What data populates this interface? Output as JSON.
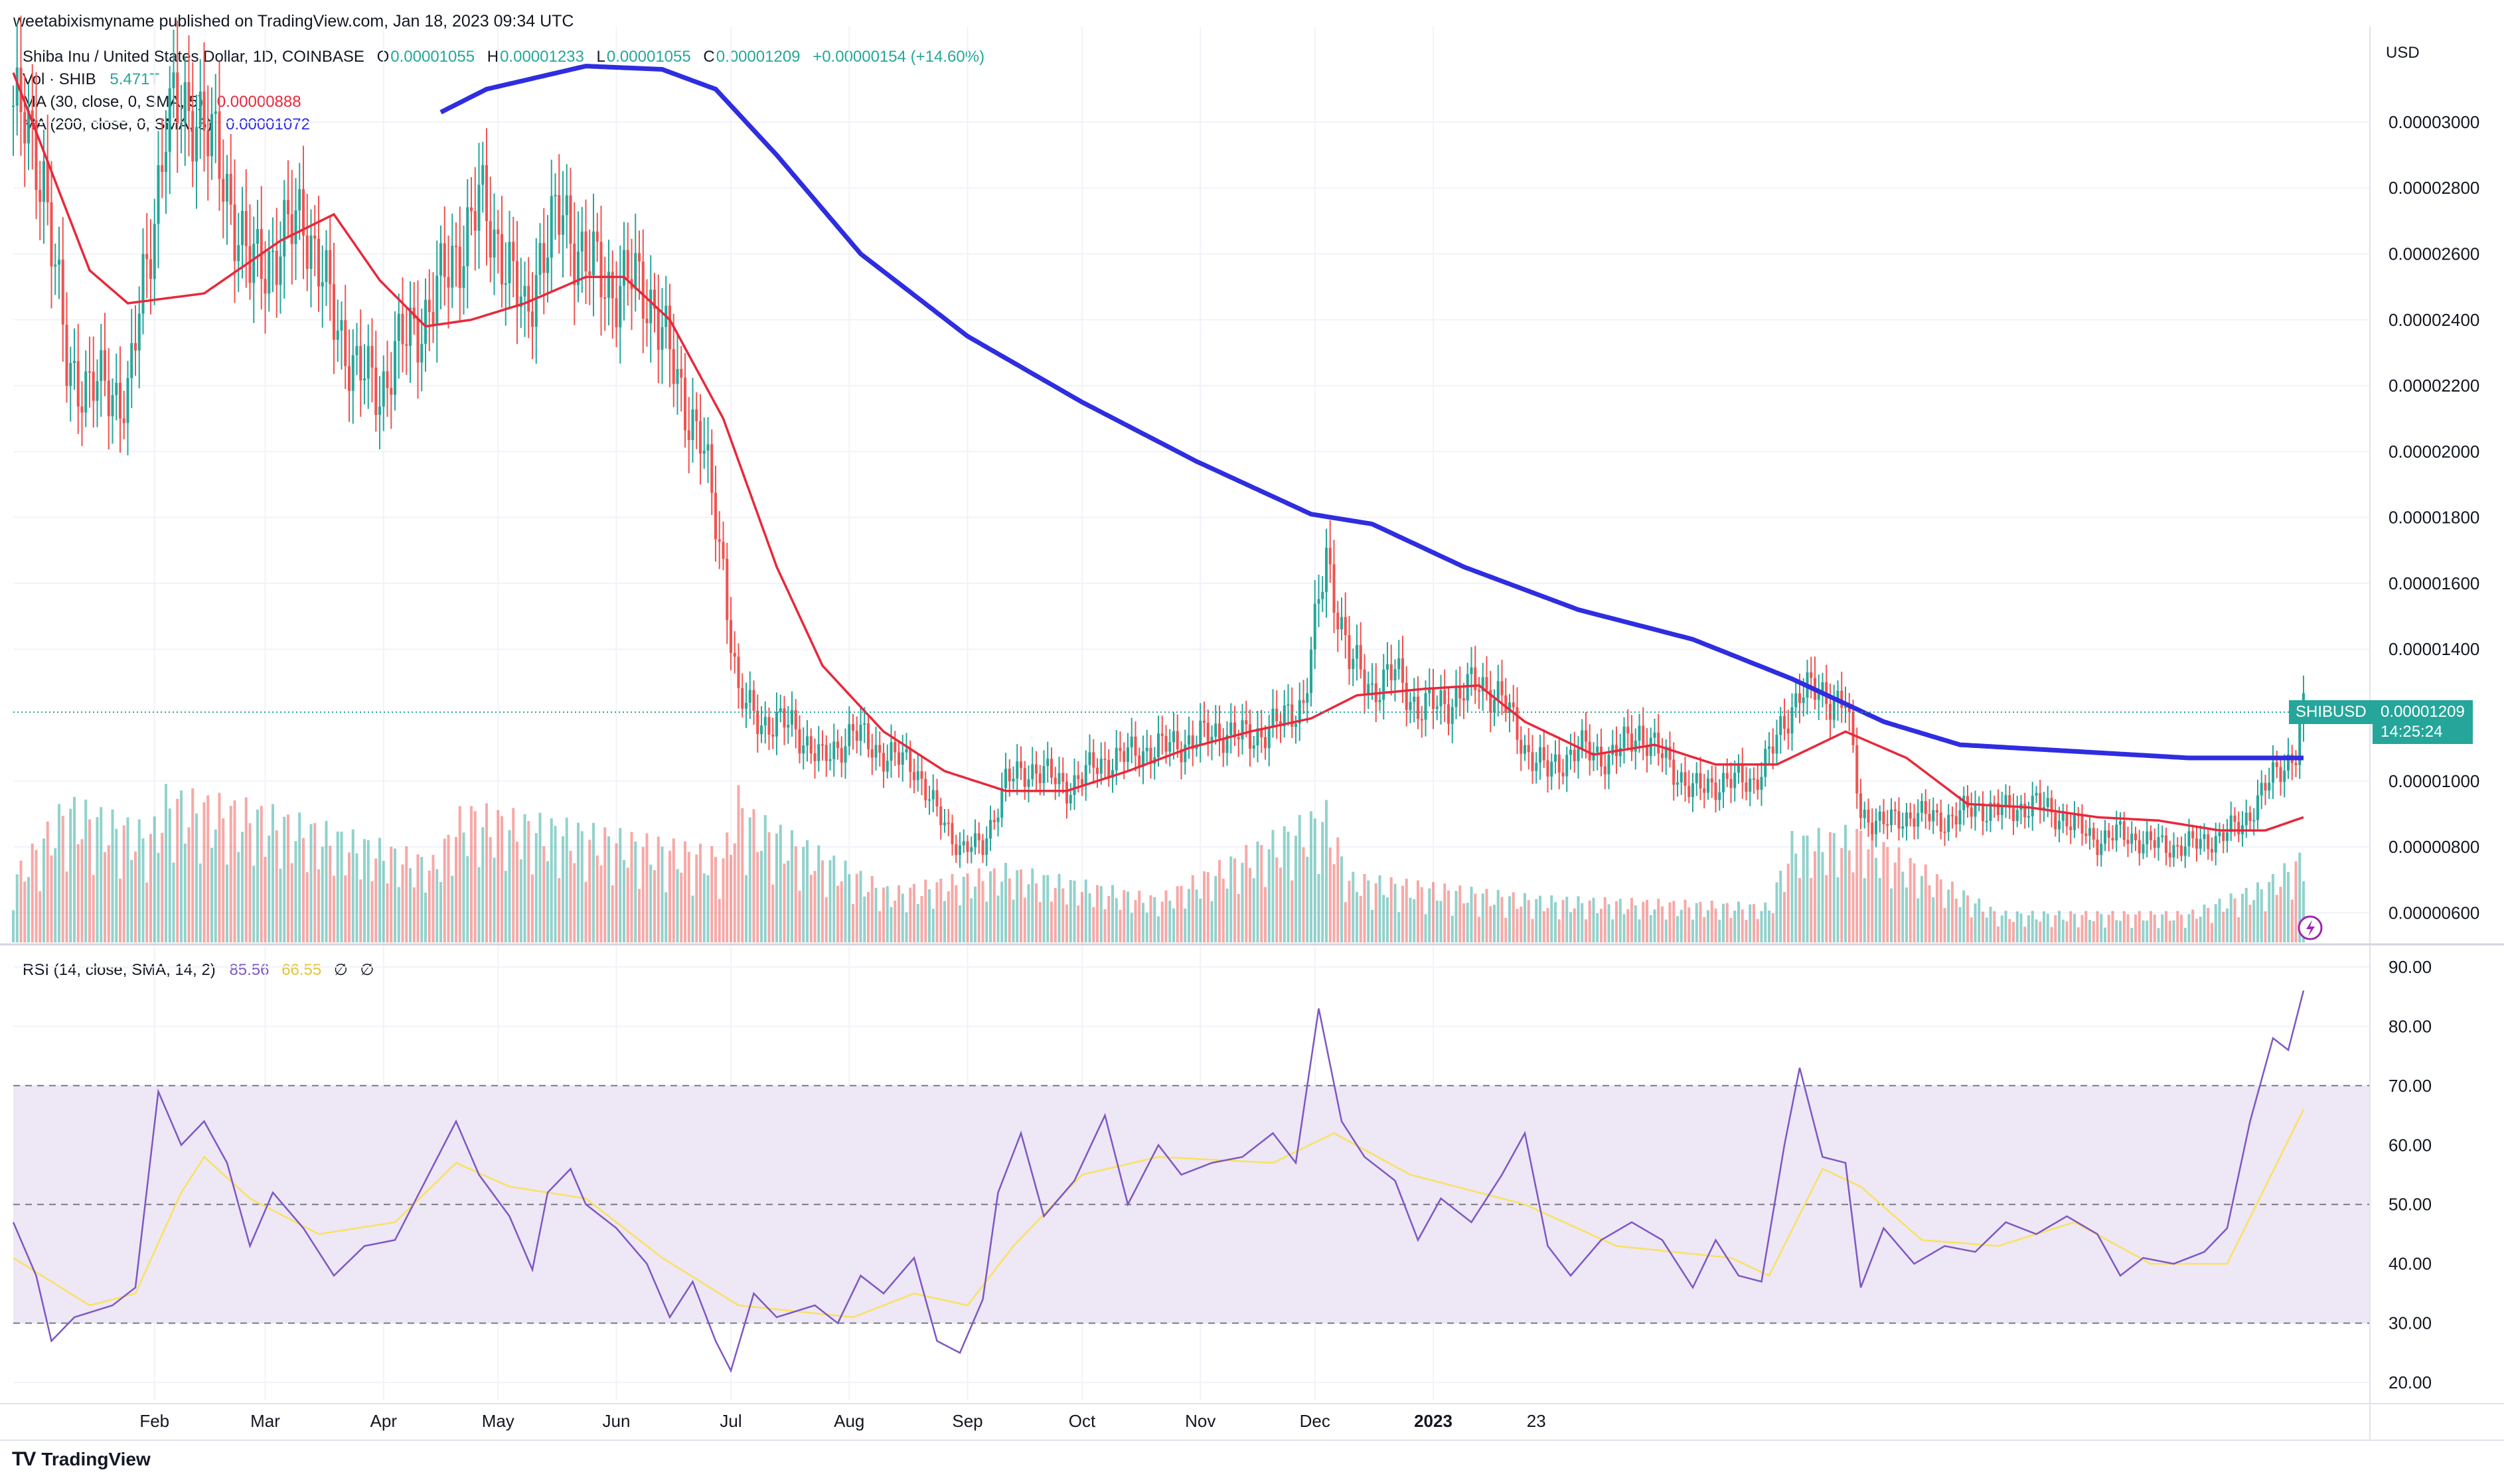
{
  "publish_line": "weetabixismyname published on TradingView.com, Jan 18, 2023 09:34 UTC",
  "legend": {
    "symbol": "Shiba Inu / United States Dollar, 1D, COINBASE",
    "o_label": "O",
    "o_value": "0.00001055",
    "h_label": "H",
    "h_value": "0.00001233",
    "l_label": "L",
    "l_value": "0.00001055",
    "c_label": "C",
    "c_value": "0.00001209",
    "change": "+0.00000154 (+14.60%)",
    "vol_label": "Vol · SHIB",
    "vol_value": "5.471T",
    "ma30_label": "MA (30, close, 0, SMA, 5)",
    "ma30_value": "0.00000888",
    "ma200_label": "MA (200, close, 0, SMA, 5)",
    "ma200_value": "0.00001072",
    "rsi_label": "RSI (14, close, SMA, 14, 2)",
    "rsi_value": "85.56",
    "rsi_ma_value": "66.55",
    "rsi_extra1": "∅",
    "rsi_extra2": "∅"
  },
  "price_axis": {
    "currency": "USD",
    "ticks": [
      "0.00003000",
      "0.00002800",
      "0.00002600",
      "0.00002400",
      "0.00002200",
      "0.00002000",
      "0.00001800",
      "0.00001600",
      "0.00001400",
      "0.00001000",
      "0.00000800",
      "0.00000600"
    ]
  },
  "price_tag": {
    "symbol": "SHIBUSD",
    "value": "0.00001209",
    "countdown": "14:25:24"
  },
  "rsi_axis": {
    "ticks": [
      "90.00",
      "80.00",
      "70.00",
      "60.00",
      "50.00",
      "40.00",
      "30.00",
      "20.00"
    ]
  },
  "time_axis": {
    "labels": [
      "Feb",
      "Mar",
      "Apr",
      "May",
      "Jun",
      "Jul",
      "Aug",
      "Sep",
      "Oct",
      "Nov",
      "Dec",
      "2023",
      "23"
    ]
  },
  "brand": "TradingView",
  "colors": {
    "up": "#26a69a",
    "down": "#ef5350",
    "ma30": "#e8283b",
    "ma200": "#2f2de0",
    "rsi": "#7e57c2",
    "rsi_ma": "#fbe15f",
    "rsi_band": "#ede7f6"
  },
  "chart_data": {
    "type": "candlestick",
    "title": "Shiba Inu / United States Dollar, 1D, COINBASE",
    "xlabel": "",
    "ylabel": "USD",
    "ylim": [
      5.1e-06,
      3.29e-05
    ],
    "rsi_ylim": [
      17,
      93
    ],
    "rsi_levels": [
      30,
      50,
      70
    ],
    "months": [
      "Feb",
      "Mar",
      "Apr",
      "May",
      "Jun",
      "Jul",
      "Aug",
      "Sep",
      "Oct",
      "Nov",
      "Dec",
      "2023"
    ],
    "close_series": [
      {
        "t": 0,
        "v": 3.05e-05
      },
      {
        "t": 8,
        "v": 2.85e-05
      },
      {
        "t": 14,
        "v": 2.25e-05
      },
      {
        "t": 20,
        "v": 2.2e-05
      },
      {
        "t": 30,
        "v": 2.17e-05
      },
      {
        "t": 36,
        "v": 2.65e-05
      },
      {
        "t": 40,
        "v": 3e-05
      },
      {
        "t": 48,
        "v": 3.05e-05
      },
      {
        "t": 56,
        "v": 2.8e-05
      },
      {
        "t": 62,
        "v": 2.55e-05
      },
      {
        "t": 70,
        "v": 2.62e-05
      },
      {
        "t": 76,
        "v": 2.73e-05
      },
      {
        "t": 84,
        "v": 2.4e-05
      },
      {
        "t": 90,
        "v": 2.25e-05
      },
      {
        "t": 96,
        "v": 2.18e-05
      },
      {
        "t": 100,
        "v": 2.3e-05
      },
      {
        "t": 106,
        "v": 2.38e-05
      },
      {
        "t": 112,
        "v": 2.5e-05
      },
      {
        "t": 118,
        "v": 2.65e-05
      },
      {
        "t": 122,
        "v": 2.75e-05
      },
      {
        "t": 128,
        "v": 2.62e-05
      },
      {
        "t": 134,
        "v": 2.4e-05
      },
      {
        "t": 138,
        "v": 2.6e-05
      },
      {
        "t": 144,
        "v": 2.72e-05
      },
      {
        "t": 150,
        "v": 2.58e-05
      },
      {
        "t": 156,
        "v": 2.5e-05
      },
      {
        "t": 162,
        "v": 2.52e-05
      },
      {
        "t": 168,
        "v": 2.45e-05
      },
      {
        "t": 174,
        "v": 2.2e-05
      },
      {
        "t": 180,
        "v": 2.05e-05
      },
      {
        "t": 186,
        "v": 1.65e-05
      },
      {
        "t": 190,
        "v": 1.25e-05
      },
      {
        "t": 196,
        "v": 1.18e-05
      },
      {
        "t": 204,
        "v": 1.17e-05
      },
      {
        "t": 212,
        "v": 1.06e-05
      },
      {
        "t": 220,
        "v": 1.15e-05
      },
      {
        "t": 228,
        "v": 1.08e-05
      },
      {
        "t": 236,
        "v": 1.05e-05
      },
      {
        "t": 242,
        "v": 9e-06
      },
      {
        "t": 248,
        "v": 8e-06
      },
      {
        "t": 254,
        "v": 8e-06
      },
      {
        "t": 260,
        "v": 1e-05
      },
      {
        "t": 268,
        "v": 1.04e-05
      },
      {
        "t": 276,
        "v": 9.8e-06
      },
      {
        "t": 284,
        "v": 1.05e-05
      },
      {
        "t": 292,
        "v": 1.08e-05
      },
      {
        "t": 300,
        "v": 1.1e-05
      },
      {
        "t": 308,
        "v": 1.12e-05
      },
      {
        "t": 316,
        "v": 1.15e-05
      },
      {
        "t": 324,
        "v": 1.13e-05
      },
      {
        "t": 332,
        "v": 1.18e-05
      },
      {
        "t": 338,
        "v": 1.24e-05
      },
      {
        "t": 344,
        "v": 1.68e-05
      },
      {
        "t": 350,
        "v": 1.37e-05
      },
      {
        "t": 356,
        "v": 1.28e-05
      },
      {
        "t": 362,
        "v": 1.33e-05
      },
      {
        "t": 368,
        "v": 1.22e-05
      },
      {
        "t": 376,
        "v": 1.24e-05
      },
      {
        "t": 384,
        "v": 1.3e-05
      },
      {
        "t": 390,
        "v": 1.25e-05
      },
      {
        "t": 396,
        "v": 1.1e-05
      },
      {
        "t": 402,
        "v": 1.03e-05
      },
      {
        "t": 410,
        "v": 1.1e-05
      },
      {
        "t": 418,
        "v": 1.07e-05
      },
      {
        "t": 426,
        "v": 1.15e-05
      },
      {
        "t": 434,
        "v": 1.05e-05
      },
      {
        "t": 440,
        "v": 9.7e-06
      },
      {
        "t": 448,
        "v": 1e-05
      },
      {
        "t": 456,
        "v": 1e-05
      },
      {
        "t": 462,
        "v": 1.12e-05
      },
      {
        "t": 468,
        "v": 1.28e-05
      },
      {
        "t": 474,
        "v": 1.26e-05
      },
      {
        "t": 480,
        "v": 1.24e-05
      },
      {
        "t": 484,
        "v": 9e-06
      },
      {
        "t": 490,
        "v": 8.7e-06
      },
      {
        "t": 498,
        "v": 9e-06
      },
      {
        "t": 506,
        "v": 8.8e-06
      },
      {
        "t": 514,
        "v": 9.2e-06
      },
      {
        "t": 522,
        "v": 9.1e-06
      },
      {
        "t": 530,
        "v": 9.3e-06
      },
      {
        "t": 538,
        "v": 8.8e-06
      },
      {
        "t": 546,
        "v": 8.2e-06
      },
      {
        "t": 552,
        "v": 8.4e-06
      },
      {
        "t": 560,
        "v": 8.1e-06
      },
      {
        "t": 566,
        "v": 8e-06
      },
      {
        "t": 572,
        "v": 8.1e-06
      },
      {
        "t": 578,
        "v": 8.3e-06
      },
      {
        "t": 584,
        "v": 8.7e-06
      },
      {
        "t": 590,
        "v": 9.8e-06
      },
      {
        "t": 594,
        "v": 1.04e-05
      },
      {
        "t": 598,
        "v": 1.09e-05
      },
      {
        "t": 600,
        "v": 1.21e-05
      }
    ],
    "ma30_series": [
      {
        "t": 0,
        "v": 3.15e-05
      },
      {
        "t": 20,
        "v": 2.55e-05
      },
      {
        "t": 30,
        "v": 2.45e-05
      },
      {
        "t": 50,
        "v": 2.48e-05
      },
      {
        "t": 70,
        "v": 2.64e-05
      },
      {
        "t": 84,
        "v": 2.72e-05
      },
      {
        "t": 96,
        "v": 2.52e-05
      },
      {
        "t": 108,
        "v": 2.38e-05
      },
      {
        "t": 120,
        "v": 2.4e-05
      },
      {
        "t": 134,
        "v": 2.45e-05
      },
      {
        "t": 150,
        "v": 2.53e-05
      },
      {
        "t": 160,
        "v": 2.53e-05
      },
      {
        "t": 172,
        "v": 2.4e-05
      },
      {
        "t": 186,
        "v": 2.1e-05
      },
      {
        "t": 200,
        "v": 1.65e-05
      },
      {
        "t": 212,
        "v": 1.35e-05
      },
      {
        "t": 228,
        "v": 1.15e-05
      },
      {
        "t": 244,
        "v": 1.03e-05
      },
      {
        "t": 260,
        "v": 9.7e-06
      },
      {
        "t": 276,
        "v": 9.7e-06
      },
      {
        "t": 292,
        "v": 1.03e-05
      },
      {
        "t": 308,
        "v": 1.1e-05
      },
      {
        "t": 324,
        "v": 1.15e-05
      },
      {
        "t": 340,
        "v": 1.19e-05
      },
      {
        "t": 352,
        "v": 1.26e-05
      },
      {
        "t": 370,
        "v": 1.28e-05
      },
      {
        "t": 384,
        "v": 1.29e-05
      },
      {
        "t": 396,
        "v": 1.18e-05
      },
      {
        "t": 414,
        "v": 1.08e-05
      },
      {
        "t": 430,
        "v": 1.11e-05
      },
      {
        "t": 446,
        "v": 1.05e-05
      },
      {
        "t": 462,
        "v": 1.05e-05
      },
      {
        "t": 480,
        "v": 1.15e-05
      },
      {
        "t": 496,
        "v": 1.07e-05
      },
      {
        "t": 512,
        "v": 9.3e-06
      },
      {
        "t": 528,
        "v": 9.2e-06
      },
      {
        "t": 546,
        "v": 8.9e-06
      },
      {
        "t": 562,
        "v": 8.8e-06
      },
      {
        "t": 578,
        "v": 8.5e-06
      },
      {
        "t": 590,
        "v": 8.5e-06
      },
      {
        "t": 600,
        "v": 8.9e-06
      }
    ],
    "ma200_series": [
      {
        "t": 112,
        "v": 3.03e-05
      },
      {
        "t": 124,
        "v": 3.1e-05
      },
      {
        "t": 150,
        "v": 3.17e-05
      },
      {
        "t": 170,
        "v": 3.16e-05
      },
      {
        "t": 184,
        "v": 3.1e-05
      },
      {
        "t": 200,
        "v": 2.9e-05
      },
      {
        "t": 222,
        "v": 2.6e-05
      },
      {
        "t": 250,
        "v": 2.35e-05
      },
      {
        "t": 280,
        "v": 2.15e-05
      },
      {
        "t": 310,
        "v": 1.97e-05
      },
      {
        "t": 340,
        "v": 1.81e-05
      },
      {
        "t": 356,
        "v": 1.78e-05
      },
      {
        "t": 380,
        "v": 1.65e-05
      },
      {
        "t": 410,
        "v": 1.52e-05
      },
      {
        "t": 440,
        "v": 1.43e-05
      },
      {
        "t": 466,
        "v": 1.31e-05
      },
      {
        "t": 490,
        "v": 1.18e-05
      },
      {
        "t": 510,
        "v": 1.11e-05
      },
      {
        "t": 540,
        "v": 1.09e-05
      },
      {
        "t": 570,
        "v": 1.07e-05
      },
      {
        "t": 600,
        "v": 1.07e-05
      }
    ],
    "volume_profile": [
      {
        "t": 0,
        "v": 0.45
      },
      {
        "t": 14,
        "v": 0.95
      },
      {
        "t": 36,
        "v": 0.75
      },
      {
        "t": 40,
        "v": 1.0
      },
      {
        "t": 64,
        "v": 0.9
      },
      {
        "t": 110,
        "v": 0.55
      },
      {
        "t": 118,
        "v": 0.9
      },
      {
        "t": 142,
        "v": 0.8
      },
      {
        "t": 186,
        "v": 0.6
      },
      {
        "t": 190,
        "v": 1.0
      },
      {
        "t": 194,
        "v": 0.85
      },
      {
        "t": 230,
        "v": 0.35
      },
      {
        "t": 260,
        "v": 0.5
      },
      {
        "t": 300,
        "v": 0.3
      },
      {
        "t": 344,
        "v": 0.9
      },
      {
        "t": 350,
        "v": 0.45
      },
      {
        "t": 400,
        "v": 0.3
      },
      {
        "t": 460,
        "v": 0.25
      },
      {
        "t": 466,
        "v": 0.7
      },
      {
        "t": 484,
        "v": 0.75
      },
      {
        "t": 520,
        "v": 0.2
      },
      {
        "t": 570,
        "v": 0.2
      },
      {
        "t": 590,
        "v": 0.4
      },
      {
        "t": 600,
        "v": 0.6
      }
    ],
    "rsi_series": [
      {
        "t": 0,
        "v": 47
      },
      {
        "t": 6,
        "v": 38
      },
      {
        "t": 10,
        "v": 27
      },
      {
        "t": 16,
        "v": 31
      },
      {
        "t": 26,
        "v": 33
      },
      {
        "t": 32,
        "v": 36
      },
      {
        "t": 38,
        "v": 69
      },
      {
        "t": 44,
        "v": 60
      },
      {
        "t": 50,
        "v": 64
      },
      {
        "t": 56,
        "v": 57
      },
      {
        "t": 62,
        "v": 43
      },
      {
        "t": 68,
        "v": 52
      },
      {
        "t": 76,
        "v": 46
      },
      {
        "t": 84,
        "v": 38
      },
      {
        "t": 92,
        "v": 43
      },
      {
        "t": 100,
        "v": 44
      },
      {
        "t": 108,
        "v": 54
      },
      {
        "t": 116,
        "v": 64
      },
      {
        "t": 122,
        "v": 55
      },
      {
        "t": 130,
        "v": 48
      },
      {
        "t": 136,
        "v": 39
      },
      {
        "t": 140,
        "v": 52
      },
      {
        "t": 146,
        "v": 56
      },
      {
        "t": 150,
        "v": 50
      },
      {
        "t": 158,
        "v": 46
      },
      {
        "t": 166,
        "v": 40
      },
      {
        "t": 172,
        "v": 31
      },
      {
        "t": 178,
        "v": 37
      },
      {
        "t": 184,
        "v": 27
      },
      {
        "t": 188,
        "v": 22
      },
      {
        "t": 194,
        "v": 35
      },
      {
        "t": 200,
        "v": 31
      },
      {
        "t": 210,
        "v": 33
      },
      {
        "t": 216,
        "v": 30
      },
      {
        "t": 222,
        "v": 38
      },
      {
        "t": 228,
        "v": 35
      },
      {
        "t": 236,
        "v": 41
      },
      {
        "t": 242,
        "v": 27
      },
      {
        "t": 248,
        "v": 25
      },
      {
        "t": 254,
        "v": 34
      },
      {
        "t": 258,
        "v": 52
      },
      {
        "t": 264,
        "v": 62
      },
      {
        "t": 270,
        "v": 48
      },
      {
        "t": 278,
        "v": 54
      },
      {
        "t": 286,
        "v": 65
      },
      {
        "t": 292,
        "v": 50
      },
      {
        "t": 300,
        "v": 60
      },
      {
        "t": 306,
        "v": 55
      },
      {
        "t": 314,
        "v": 57
      },
      {
        "t": 322,
        "v": 58
      },
      {
        "t": 330,
        "v": 62
      },
      {
        "t": 336,
        "v": 57
      },
      {
        "t": 342,
        "v": 83
      },
      {
        "t": 348,
        "v": 64
      },
      {
        "t": 354,
        "v": 58
      },
      {
        "t": 362,
        "v": 54
      },
      {
        "t": 368,
        "v": 44
      },
      {
        "t": 374,
        "v": 51
      },
      {
        "t": 382,
        "v": 47
      },
      {
        "t": 390,
        "v": 55
      },
      {
        "t": 396,
        "v": 62
      },
      {
        "t": 402,
        "v": 43
      },
      {
        "t": 408,
        "v": 38
      },
      {
        "t": 416,
        "v": 44
      },
      {
        "t": 424,
        "v": 47
      },
      {
        "t": 432,
        "v": 44
      },
      {
        "t": 440,
        "v": 36
      },
      {
        "t": 446,
        "v": 44
      },
      {
        "t": 452,
        "v": 38
      },
      {
        "t": 458,
        "v": 37
      },
      {
        "t": 464,
        "v": 60
      },
      {
        "t": 468,
        "v": 73
      },
      {
        "t": 474,
        "v": 58
      },
      {
        "t": 480,
        "v": 57
      },
      {
        "t": 484,
        "v": 36
      },
      {
        "t": 490,
        "v": 46
      },
      {
        "t": 498,
        "v": 40
      },
      {
        "t": 506,
        "v": 43
      },
      {
        "t": 514,
        "v": 42
      },
      {
        "t": 522,
        "v": 47
      },
      {
        "t": 530,
        "v": 45
      },
      {
        "t": 538,
        "v": 48
      },
      {
        "t": 546,
        "v": 45
      },
      {
        "t": 552,
        "v": 38
      },
      {
        "t": 558,
        "v": 41
      },
      {
        "t": 566,
        "v": 40
      },
      {
        "t": 574,
        "v": 42
      },
      {
        "t": 580,
        "v": 46
      },
      {
        "t": 586,
        "v": 64
      },
      {
        "t": 592,
        "v": 78
      },
      {
        "t": 596,
        "v": 76
      },
      {
        "t": 600,
        "v": 86
      }
    ],
    "rsi_ma_series": [
      {
        "t": 0,
        "v": 41
      },
      {
        "t": 20,
        "v": 33
      },
      {
        "t": 32,
        "v": 35
      },
      {
        "t": 44,
        "v": 52
      },
      {
        "t": 50,
        "v": 58
      },
      {
        "t": 62,
        "v": 51
      },
      {
        "t": 80,
        "v": 45
      },
      {
        "t": 100,
        "v": 47
      },
      {
        "t": 116,
        "v": 57
      },
      {
        "t": 130,
        "v": 53
      },
      {
        "t": 150,
        "v": 51
      },
      {
        "t": 170,
        "v": 41
      },
      {
        "t": 190,
        "v": 33
      },
      {
        "t": 220,
        "v": 31
      },
      {
        "t": 236,
        "v": 35
      },
      {
        "t": 250,
        "v": 33
      },
      {
        "t": 262,
        "v": 43
      },
      {
        "t": 280,
        "v": 55
      },
      {
        "t": 300,
        "v": 58
      },
      {
        "t": 330,
        "v": 57
      },
      {
        "t": 346,
        "v": 62
      },
      {
        "t": 366,
        "v": 55
      },
      {
        "t": 396,
        "v": 50
      },
      {
        "t": 420,
        "v": 43
      },
      {
        "t": 450,
        "v": 41
      },
      {
        "t": 460,
        "v": 38
      },
      {
        "t": 474,
        "v": 56
      },
      {
        "t": 484,
        "v": 53
      },
      {
        "t": 500,
        "v": 44
      },
      {
        "t": 520,
        "v": 43
      },
      {
        "t": 540,
        "v": 47
      },
      {
        "t": 560,
        "v": 40
      },
      {
        "t": 580,
        "v": 40
      },
      {
        "t": 590,
        "v": 53
      },
      {
        "t": 600,
        "v": 66
      }
    ]
  }
}
